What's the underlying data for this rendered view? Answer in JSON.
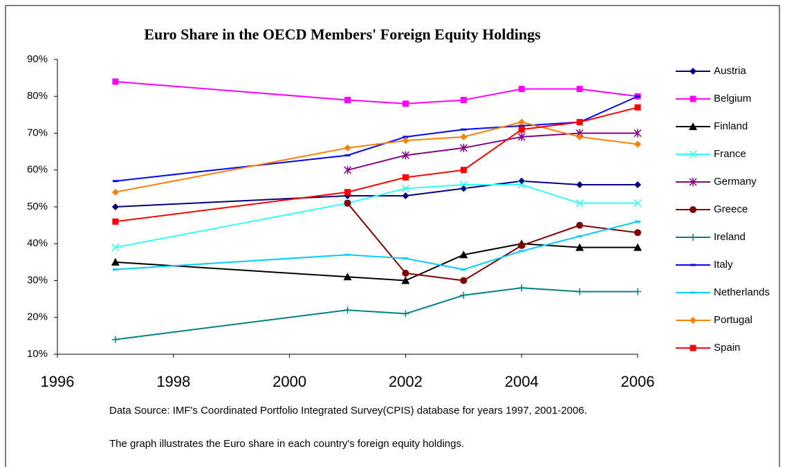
{
  "chart_data": {
    "type": "line",
    "title": "Euro Share in  the OECD Members' Foreign Equity Holdings",
    "x": [
      1997,
      2001,
      2002,
      2003,
      2004,
      2005,
      2006
    ],
    "xlim": [
      1996,
      2006
    ],
    "xticks": [
      1996,
      1998,
      2000,
      2002,
      2004,
      2006
    ],
    "ylim": [
      10,
      90
    ],
    "yticks": [
      {
        "value": 10,
        "label": "10%"
      },
      {
        "value": 20,
        "label": "20%"
      },
      {
        "value": 30,
        "label": "30%"
      },
      {
        "value": 40,
        "label": "40%"
      },
      {
        "value": 50,
        "label": "50%"
      },
      {
        "value": 60,
        "label": "60%"
      },
      {
        "value": 70,
        "label": "70%"
      },
      {
        "value": 80,
        "label": "80%"
      },
      {
        "value": 90,
        "label": "90%"
      }
    ],
    "legend": "right",
    "series": [
      {
        "name": "Austria",
        "color": "#000080",
        "marker": "diamond",
        "values": [
          50,
          53,
          53,
          55,
          57,
          56,
          56
        ]
      },
      {
        "name": "Belgium",
        "color": "#ff00ff",
        "marker": "square",
        "values": [
          84,
          79,
          78,
          79,
          82,
          82,
          80
        ]
      },
      {
        "name": "Finland",
        "color": "#000000",
        "marker": "triangle",
        "values": [
          35,
          31,
          30,
          37,
          40,
          39,
          39
        ]
      },
      {
        "name": "France",
        "color": "#33ffff",
        "marker": "x",
        "values": [
          39,
          51,
          55,
          56,
          56,
          51,
          51
        ]
      },
      {
        "name": "Germany",
        "color": "#800080",
        "marker": "star",
        "values": [
          null,
          60,
          64,
          66,
          69,
          70,
          70
        ]
      },
      {
        "name": "Greece",
        "color": "#800000",
        "marker": "circle",
        "values": [
          null,
          51,
          32,
          30,
          39.5,
          45,
          43
        ]
      },
      {
        "name": "Ireland",
        "color": "#008080",
        "marker": "plus",
        "values": [
          14,
          22,
          21,
          26,
          28,
          27,
          27
        ]
      },
      {
        "name": "Italy",
        "color": "#0000ff",
        "marker": "dash",
        "values": [
          57,
          64,
          69,
          71,
          72,
          73,
          80
        ]
      },
      {
        "name": "Netherlands",
        "color": "#00ccff",
        "marker": "dash",
        "values": [
          33,
          37,
          36,
          33,
          38,
          42,
          46
        ]
      },
      {
        "name": "Portugal",
        "color": "#ff8000",
        "marker": "diamond",
        "values": [
          54,
          66,
          68,
          69,
          73,
          69,
          67
        ]
      },
      {
        "name": "Spain",
        "color": "#ff0000",
        "marker": "square",
        "values": [
          46,
          54,
          58,
          60,
          71,
          73,
          77
        ]
      }
    ],
    "notes": [
      "Data Source: IMF's Coordinated Portfolio Integrated Survey(CPIS) database for years 1997, 2001-2006.",
      "The graph illustrates the Euro share in each country's foreign equity holdings."
    ]
  }
}
